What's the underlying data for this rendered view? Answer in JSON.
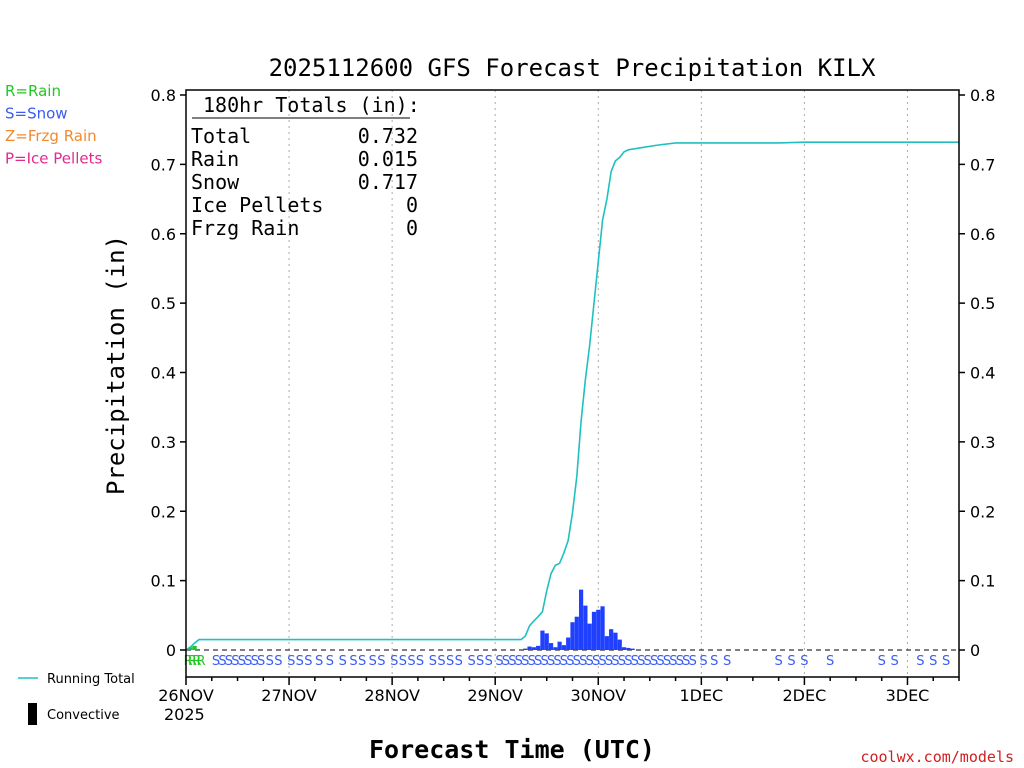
{
  "chart_data": {
    "type": "bar",
    "title": "2025112600 GFS Forecast Precipitation KILX",
    "xlabel": "Forecast Time (UTC)",
    "ylabel": "Precipitation (in)",
    "ylim": [
      0,
      0.8
    ],
    "yticks": [
      0,
      0.1,
      0.2,
      0.3,
      0.4,
      0.5,
      0.6,
      0.7,
      0.8
    ],
    "ytick_labels": [
      "0",
      "0.1",
      "0.2",
      "0.3",
      "0.4",
      "0.5",
      "0.6",
      "0.7",
      "0.8"
    ],
    "xlim_hours": [
      0,
      180
    ],
    "x_ticks": [
      {
        "hour": 0,
        "label": "26NOV"
      },
      {
        "hour": 24,
        "label": "27NOV"
      },
      {
        "hour": 48,
        "label": "28NOV"
      },
      {
        "hour": 72,
        "label": "29NOV"
      },
      {
        "hour": 96,
        "label": "30NOV"
      },
      {
        "hour": 120,
        "label": "1DEC"
      },
      {
        "hour": 144,
        "label": "2DEC"
      },
      {
        "hour": 168,
        "label": "3DEC"
      }
    ],
    "year_label": "2025",
    "totals_box": {
      "header": "180hr Totals (in):",
      "rows": [
        {
          "label": "Total",
          "value": "0.732"
        },
        {
          "label": "Rain",
          "value": "0.015"
        },
        {
          "label": "Snow",
          "value": "0.717"
        },
        {
          "label": "Ice Pellets",
          "value": "0"
        },
        {
          "label": "Frzg Rain",
          "value": "0"
        }
      ]
    },
    "legend_types": [
      {
        "text": "R=Rain",
        "color": "#22c822"
      },
      {
        "text": "S=Snow",
        "color": "#3a5cf0"
      },
      {
        "text": "Z=Frzg Rain",
        "color": "#f08a30"
      },
      {
        "text": "P=Ice Pellets",
        "color": "#e02a90"
      }
    ],
    "legend_lines": [
      {
        "text": "Running Total",
        "kind": "line",
        "color": "#20c0c0"
      },
      {
        "text": "Convective",
        "kind": "bar",
        "color": "#000000"
      }
    ],
    "credit": "coolwx.com/models",
    "bar_color": "#2040ff",
    "line_color": "#20c0c0",
    "rain_bars": [
      {
        "hour": 1,
        "value": 0.004
      },
      {
        "hour": 2,
        "value": 0.006
      }
    ],
    "snow_bars": [
      {
        "hour": 79,
        "value": 0.002
      },
      {
        "hour": 80,
        "value": 0.005
      },
      {
        "hour": 81,
        "value": 0.004
      },
      {
        "hour": 82,
        "value": 0.006
      },
      {
        "hour": 83,
        "value": 0.028
      },
      {
        "hour": 84,
        "value": 0.024
      },
      {
        "hour": 85,
        "value": 0.01
      },
      {
        "hour": 86,
        "value": 0.004
      },
      {
        "hour": 87,
        "value": 0.012
      },
      {
        "hour": 88,
        "value": 0.007
      },
      {
        "hour": 89,
        "value": 0.018
      },
      {
        "hour": 90,
        "value": 0.04
      },
      {
        "hour": 91,
        "value": 0.048
      },
      {
        "hour": 92,
        "value": 0.087
      },
      {
        "hour": 93,
        "value": 0.064
      },
      {
        "hour": 94,
        "value": 0.038
      },
      {
        "hour": 95,
        "value": 0.055
      },
      {
        "hour": 96,
        "value": 0.058
      },
      {
        "hour": 97,
        "value": 0.063
      },
      {
        "hour": 98,
        "value": 0.02
      },
      {
        "hour": 99,
        "value": 0.03
      },
      {
        "hour": 100,
        "value": 0.025
      },
      {
        "hour": 101,
        "value": 0.015
      },
      {
        "hour": 102,
        "value": 0.004
      },
      {
        "hour": 103,
        "value": 0.003
      },
      {
        "hour": 104,
        "value": 0.002
      }
    ],
    "running_total": [
      [
        0,
        0.0
      ],
      [
        1,
        0.004
      ],
      [
        2,
        0.01
      ],
      [
        3,
        0.015
      ],
      [
        24,
        0.015
      ],
      [
        48,
        0.015
      ],
      [
        72,
        0.015
      ],
      [
        78,
        0.015
      ],
      [
        79,
        0.02
      ],
      [
        80,
        0.035
      ],
      [
        81,
        0.042
      ],
      [
        82,
        0.048
      ],
      [
        83,
        0.055
      ],
      [
        84,
        0.085
      ],
      [
        85,
        0.11
      ],
      [
        86,
        0.122
      ],
      [
        87,
        0.125
      ],
      [
        88,
        0.14
      ],
      [
        89,
        0.158
      ],
      [
        90,
        0.198
      ],
      [
        91,
        0.25
      ],
      [
        92,
        0.33
      ],
      [
        93,
        0.39
      ],
      [
        94,
        0.44
      ],
      [
        95,
        0.5
      ],
      [
        96,
        0.56
      ],
      [
        97,
        0.62
      ],
      [
        98,
        0.65
      ],
      [
        99,
        0.69
      ],
      [
        100,
        0.705
      ],
      [
        101,
        0.71
      ],
      [
        102,
        0.718
      ],
      [
        103,
        0.721
      ],
      [
        104,
        0.722
      ],
      [
        106,
        0.724
      ],
      [
        110,
        0.728
      ],
      [
        114,
        0.731
      ],
      [
        120,
        0.731
      ],
      [
        138,
        0.731
      ],
      [
        144,
        0.732
      ],
      [
        180,
        0.732
      ]
    ],
    "ptype_marks": [
      {
        "hour": 0.5,
        "code": "R"
      },
      {
        "hour": 1.5,
        "code": "R"
      },
      {
        "hour": 2.5,
        "code": "R"
      },
      {
        "hour": 3.5,
        "code": "R"
      },
      {
        "hour": 7,
        "code": "S"
      },
      {
        "hour": 8.5,
        "code": "S"
      },
      {
        "hour": 10,
        "code": "S"
      },
      {
        "hour": 11.5,
        "code": "S"
      },
      {
        "hour": 13,
        "code": "S"
      },
      {
        "hour": 14.5,
        "code": "S"
      },
      {
        "hour": 16,
        "code": "S"
      },
      {
        "hour": 17.5,
        "code": "S"
      },
      {
        "hour": 19.5,
        "code": "S"
      },
      {
        "hour": 21.5,
        "code": "S"
      },
      {
        "hour": 24.5,
        "code": "S"
      },
      {
        "hour": 26.5,
        "code": "S"
      },
      {
        "hour": 28.5,
        "code": "S"
      },
      {
        "hour": 31,
        "code": "S"
      },
      {
        "hour": 33.5,
        "code": "S"
      },
      {
        "hour": 36.5,
        "code": "S"
      },
      {
        "hour": 39,
        "code": "S"
      },
      {
        "hour": 41,
        "code": "S"
      },
      {
        "hour": 43.5,
        "code": "S"
      },
      {
        "hour": 45.5,
        "code": "S"
      },
      {
        "hour": 48.5,
        "code": "S"
      },
      {
        "hour": 50.5,
        "code": "S"
      },
      {
        "hour": 52.5,
        "code": "S"
      },
      {
        "hour": 54.5,
        "code": "S"
      },
      {
        "hour": 57.5,
        "code": "S"
      },
      {
        "hour": 59.5,
        "code": "S"
      },
      {
        "hour": 61.5,
        "code": "S"
      },
      {
        "hour": 63.5,
        "code": "S"
      },
      {
        "hour": 66.5,
        "code": "S"
      },
      {
        "hour": 68.5,
        "code": "S"
      },
      {
        "hour": 70.5,
        "code": "S"
      },
      {
        "hour": 73,
        "code": "S"
      },
      {
        "hour": 74.5,
        "code": "S"
      },
      {
        "hour": 76,
        "code": "S"
      },
      {
        "hour": 77.5,
        "code": "S"
      },
      {
        "hour": 79,
        "code": "S"
      },
      {
        "hour": 80.5,
        "code": "S"
      },
      {
        "hour": 82,
        "code": "S"
      },
      {
        "hour": 83.5,
        "code": "S"
      },
      {
        "hour": 85,
        "code": "S"
      },
      {
        "hour": 86.5,
        "code": "S"
      },
      {
        "hour": 88,
        "code": "S"
      },
      {
        "hour": 89.5,
        "code": "S"
      },
      {
        "hour": 91,
        "code": "S"
      },
      {
        "hour": 92.5,
        "code": "S"
      },
      {
        "hour": 94,
        "code": "S"
      },
      {
        "hour": 95.5,
        "code": "S"
      },
      {
        "hour": 97,
        "code": "S"
      },
      {
        "hour": 98.5,
        "code": "S"
      },
      {
        "hour": 100,
        "code": "S"
      },
      {
        "hour": 101.5,
        "code": "S"
      },
      {
        "hour": 103,
        "code": "S"
      },
      {
        "hour": 104.5,
        "code": "S"
      },
      {
        "hour": 106,
        "code": "S"
      },
      {
        "hour": 107.5,
        "code": "S"
      },
      {
        "hour": 109,
        "code": "S"
      },
      {
        "hour": 110.5,
        "code": "S"
      },
      {
        "hour": 112,
        "code": "S"
      },
      {
        "hour": 113.5,
        "code": "S"
      },
      {
        "hour": 115,
        "code": "S"
      },
      {
        "hour": 116.5,
        "code": "S"
      },
      {
        "hour": 118,
        "code": "S"
      },
      {
        "hour": 120.5,
        "code": "S"
      },
      {
        "hour": 123,
        "code": "S"
      },
      {
        "hour": 126,
        "code": "S"
      },
      {
        "hour": 138,
        "code": "S"
      },
      {
        "hour": 141,
        "code": "S"
      },
      {
        "hour": 144,
        "code": "S"
      },
      {
        "hour": 150,
        "code": "S"
      },
      {
        "hour": 162,
        "code": "S"
      },
      {
        "hour": 165,
        "code": "S"
      },
      {
        "hour": 171,
        "code": "S"
      },
      {
        "hour": 174,
        "code": "S"
      },
      {
        "hour": 177,
        "code": "S"
      }
    ]
  }
}
